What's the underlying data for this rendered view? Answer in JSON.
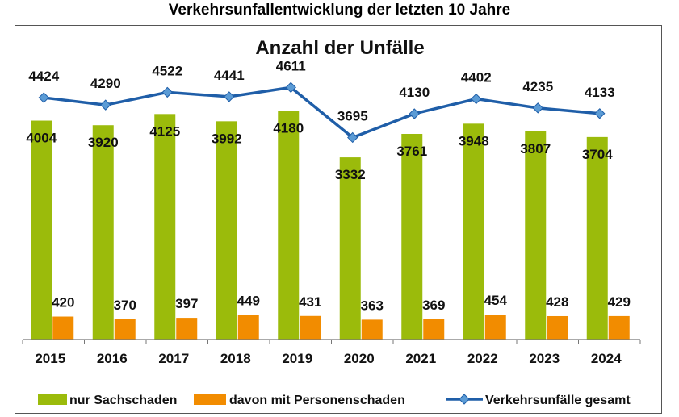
{
  "page_title": "Verkehrsunfallentwicklung der letzten 10 Jahre",
  "colors": {
    "sachschaden": "#9bbb0b",
    "personenschaden": "#f28c00",
    "gesamt": "#1f5ea8",
    "marker": "#5b9bd5"
  },
  "chart_data": {
    "type": "bar",
    "title": "Anzahl der Unfälle",
    "xlabel": "",
    "ylabel": "",
    "categories": [
      "2015",
      "2016",
      "2017",
      "2018",
      "2019",
      "2020",
      "2021",
      "2022",
      "2023",
      "2024"
    ],
    "series": [
      {
        "name": "nur Sachschaden",
        "type": "bar",
        "values": [
          4004,
          3920,
          4125,
          3992,
          4180,
          3332,
          3761,
          3948,
          3807,
          3704
        ]
      },
      {
        "name": "davon mit Personenschaden",
        "type": "bar",
        "values": [
          420,
          370,
          397,
          449,
          431,
          363,
          369,
          454,
          428,
          429
        ]
      },
      {
        "name": "Verkehrsunfälle gesamt",
        "type": "line",
        "values": [
          4424,
          4290,
          4522,
          4441,
          4611,
          3695,
          4130,
          4402,
          4235,
          4133
        ]
      }
    ],
    "ylim": [
      0,
      5000
    ],
    "grid": false,
    "legend_position": "bottom"
  }
}
